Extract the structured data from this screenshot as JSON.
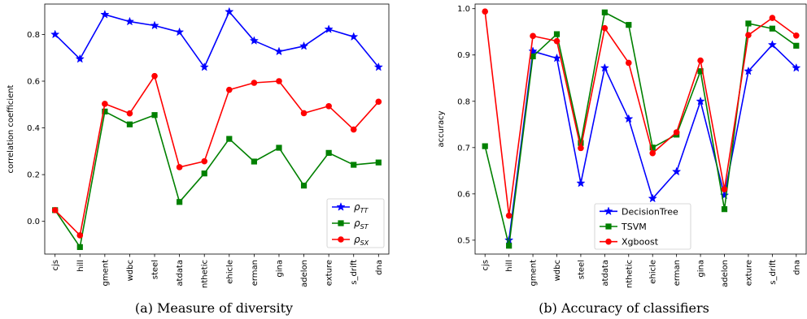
{
  "charts": [
    {
      "type": "line",
      "caption": "(a) Measure of diversity",
      "ylabel": "correlation coefficient",
      "xlabel": "",
      "categories": [
        "cjs",
        "hill",
        "gment",
        "wdbc",
        "steel",
        "atdata",
        "nthetic",
        "ehicle",
        "erman",
        "gina",
        "adelon",
        "exture",
        "s_drift",
        "dna"
      ],
      "ylim": [
        -0.14,
        0.93
      ],
      "yticks": [
        0.0,
        0.2,
        0.4,
        0.6,
        0.8
      ],
      "ytick_labels": [
        "0.0",
        "0.2",
        "0.4",
        "0.6",
        "0.8"
      ],
      "legend_position": "lower-right",
      "series": [
        {
          "name_base": "ρ",
          "name_sub": "TT",
          "color": "#0000ff",
          "marker": "star",
          "values": [
            0.8,
            0.695,
            0.885,
            0.855,
            0.838,
            0.81,
            0.66,
            0.897,
            0.773,
            0.727,
            0.75,
            0.822,
            0.79,
            0.66
          ]
        },
        {
          "name_base": "ρ",
          "name_sub": "ST",
          "color": "#008000",
          "marker": "square",
          "values": [
            0.048,
            -0.11,
            0.47,
            0.415,
            0.455,
            0.083,
            0.205,
            0.353,
            0.256,
            0.315,
            0.153,
            0.293,
            0.242,
            0.252
          ]
        },
        {
          "name_base": "ρ",
          "name_sub": "SX",
          "color": "#ff0000",
          "marker": "circle",
          "values": [
            0.048,
            -0.06,
            0.503,
            0.462,
            0.622,
            0.232,
            0.257,
            0.563,
            0.593,
            0.6,
            0.463,
            0.493,
            0.393,
            0.512
          ]
        }
      ]
    },
    {
      "type": "line",
      "caption": "(b) Accuracy of classifiers",
      "ylabel": "accuracy",
      "xlabel": "",
      "categories": [
        "cjs",
        "hill",
        "gment",
        "wdbc",
        "steel",
        "atdata",
        "nthetic",
        "ehicle",
        "erman",
        "gina",
        "adelon",
        "exture",
        "s_drift",
        "dna"
      ],
      "ylim": [
        0.47,
        1.01
      ],
      "yticks": [
        0.5,
        0.6,
        0.7,
        0.8,
        0.9,
        1.0
      ],
      "ytick_labels": [
        "0.5",
        "0.6",
        "0.7",
        "0.8",
        "0.9",
        "1.0"
      ],
      "legend_position": "lower-center",
      "series": [
        {
          "name": "DecisionTree",
          "color": "#0000ff",
          "marker": "star",
          "values": [
            null,
            0.5,
            0.908,
            0.893,
            0.623,
            0.872,
            0.762,
            0.59,
            0.648,
            0.8,
            0.597,
            0.865,
            0.922,
            0.872
          ]
        },
        {
          "name": "TSVM",
          "color": "#008000",
          "marker": "square",
          "values": [
            0.703,
            0.488,
            0.897,
            0.945,
            0.71,
            0.992,
            0.965,
            0.7,
            0.728,
            0.865,
            0.567,
            0.968,
            0.957,
            0.92
          ]
        },
        {
          "name": "Xgboost",
          "color": "#ff0000",
          "marker": "circle",
          "values": [
            0.994,
            0.553,
            0.941,
            0.93,
            0.699,
            0.958,
            0.883,
            0.688,
            0.733,
            0.888,
            0.61,
            0.943,
            0.98,
            0.942
          ]
        }
      ]
    }
  ]
}
